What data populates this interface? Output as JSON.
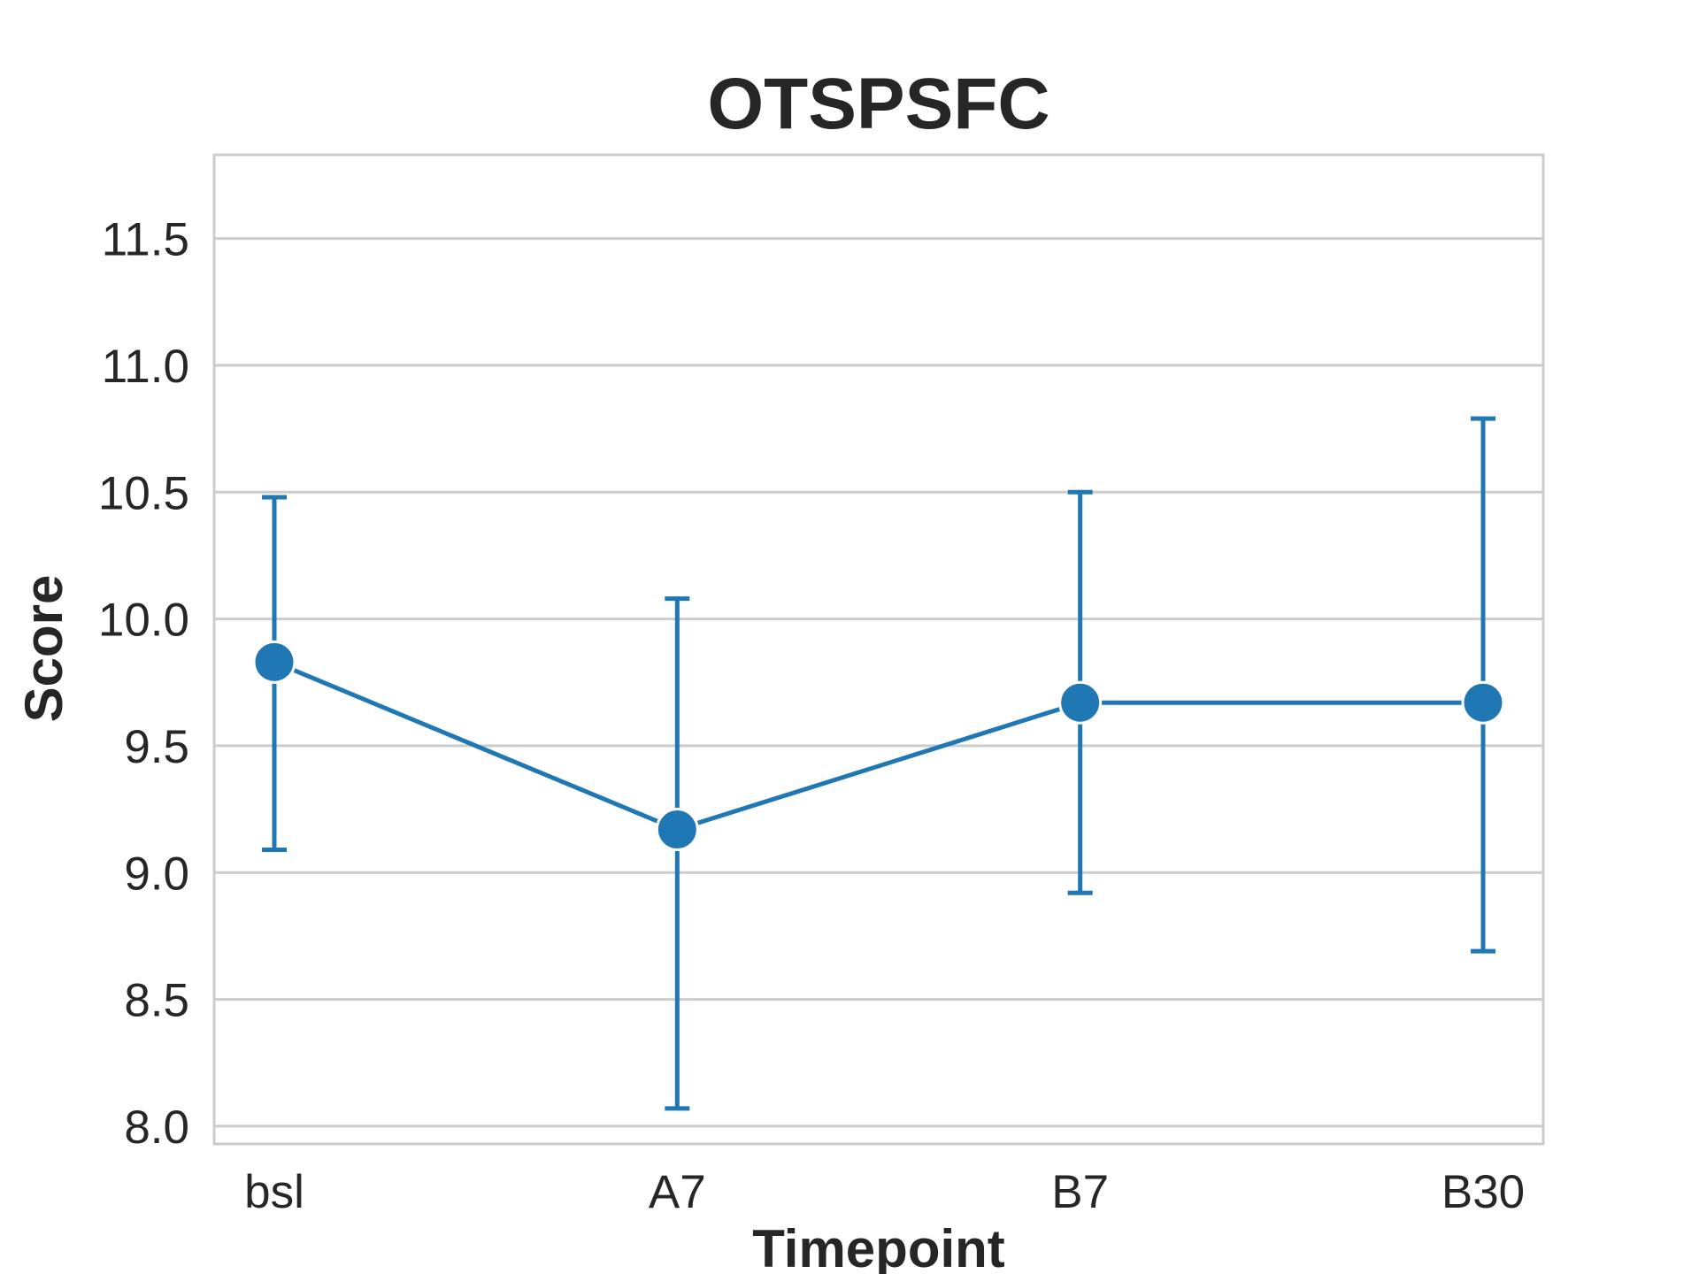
{
  "chart_data": {
    "type": "line",
    "title": "OTSPSFC",
    "xlabel": "Timepoint",
    "ylabel": "Score",
    "categories": [
      "bsl",
      "A7",
      "B7",
      "B30"
    ],
    "values": [
      9.83,
      9.17,
      9.67,
      9.67
    ],
    "error_lower": [
      9.09,
      8.07,
      8.92,
      8.69
    ],
    "error_upper": [
      10.48,
      10.08,
      10.5,
      10.79
    ],
    "ylim": [
      7.93,
      11.83
    ],
    "yticks": [
      "8.0",
      "8.5",
      "9.0",
      "9.5",
      "10.0",
      "10.5",
      "11.0",
      "11.5"
    ],
    "grid": "horizontal",
    "legend": "none",
    "color": "#1f77b4"
  }
}
